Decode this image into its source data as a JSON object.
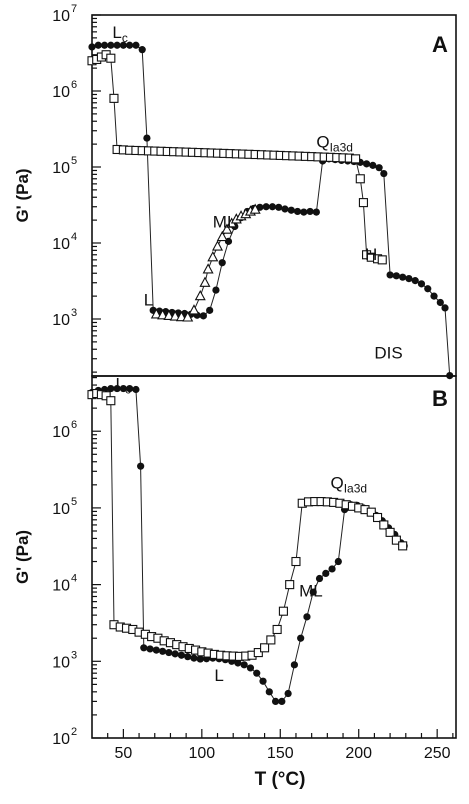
{
  "chart_data": [
    {
      "type": "scatter",
      "panel_label": "A",
      "ylabel": "G' (Pa)",
      "ylog": true,
      "ylim": [
        100,
        10000000
      ],
      "xlim": [
        30,
        262
      ],
      "yticks": [
        {
          "base": "10",
          "exp": "3",
          "value": 1000
        },
        {
          "base": "10",
          "exp": "4",
          "value": 10000
        },
        {
          "base": "10",
          "exp": "5",
          "value": 100000
        },
        {
          "base": "10",
          "exp": "6",
          "value": 1000000
        },
        {
          "base": "10",
          "exp": "7",
          "value": 10000000
        }
      ],
      "annotations": [
        {
          "main": "L",
          "sub": "c",
          "x": 43,
          "y": 5000000
        },
        {
          "main": "Q",
          "sub": "Ia3d",
          "x": 173,
          "y": 180000
        },
        {
          "main": "ML",
          "x": 107,
          "y": 16000
        },
        {
          "main": "L",
          "x": 63,
          "y": 1500
        },
        {
          "main": "H",
          "x": 204,
          "y": 6000
        },
        {
          "main": "DIS",
          "x": 210,
          "y": 300
        }
      ],
      "series": [
        {
          "marker": "filled-circle",
          "points": [
            [
              30,
              3800000
            ],
            [
              34,
              4000000
            ],
            [
              38,
              4000000
            ],
            [
              42,
              4000000
            ],
            [
              46,
              4000000
            ],
            [
              50,
              4000000
            ],
            [
              54,
              4000000
            ],
            [
              58,
              4000000
            ],
            [
              62,
              3500000
            ],
            [
              65,
              240000
            ],
            [
              69,
              1300
            ],
            [
              73,
              1270
            ],
            [
              77,
              1250
            ],
            [
              81,
              1220
            ],
            [
              85,
              1200
            ],
            [
              89,
              1180
            ],
            [
              93,
              1150
            ],
            [
              97,
              1120
            ],
            [
              101,
              1100
            ],
            [
              105,
              1300
            ],
            [
              109,
              2400
            ],
            [
              113,
              5500
            ],
            [
              117,
              10500
            ],
            [
              121,
              16500
            ],
            [
              125,
              21500
            ],
            [
              129,
              26000
            ],
            [
              133,
              28500
            ],
            [
              137,
              29500
            ],
            [
              141,
              30000
            ],
            [
              145,
              30000
            ],
            [
              149,
              29500
            ],
            [
              153,
              28000
            ],
            [
              157,
              27000
            ],
            [
              161,
              26000
            ],
            [
              165,
              25500
            ],
            [
              169,
              26000
            ],
            [
              173,
              25500
            ],
            [
              177,
              120000
            ],
            [
              181,
              128000
            ],
            [
              185,
              125000
            ],
            [
              189,
              122000
            ],
            [
              193,
              120000
            ],
            [
              197,
              118000
            ],
            [
              201,
              115000
            ],
            [
              205,
              110000
            ],
            [
              209,
              105000
            ],
            [
              213,
              98000
            ],
            [
              216,
              82000
            ],
            [
              220,
              3800
            ],
            [
              224,
              3700
            ],
            [
              228,
              3550
            ],
            [
              232,
              3400
            ],
            [
              236,
              3200
            ],
            [
              240,
              2900
            ],
            [
              244,
              2500
            ],
            [
              248,
              2000
            ],
            [
              252,
              1650
            ],
            [
              255,
              1400
            ],
            [
              258,
              180
            ]
          ]
        },
        {
          "marker": "open-square",
          "points": [
            [
              30,
              2500000
            ],
            [
              33,
              2600000
            ],
            [
              36,
              2800000
            ],
            [
              39,
              3000000
            ],
            [
              42,
              2700000
            ],
            [
              44,
              800000
            ],
            [
              46,
              170000
            ],
            [
              50,
              168000
            ],
            [
              54,
              166000
            ],
            [
              58,
              165000
            ],
            [
              62,
              164000
            ],
            [
              66,
              163000
            ],
            [
              70,
              162000
            ],
            [
              74,
              161000
            ],
            [
              78,
              160000
            ],
            [
              82,
              159000
            ],
            [
              86,
              158000
            ],
            [
              90,
              157000
            ],
            [
              94,
              156000
            ],
            [
              98,
              155000
            ],
            [
              102,
              154000
            ],
            [
              106,
              153000
            ],
            [
              110,
              152000
            ],
            [
              114,
              151000
            ],
            [
              118,
              150000
            ],
            [
              122,
              149000
            ],
            [
              126,
              148000
            ],
            [
              130,
              147000
            ],
            [
              134,
              146000
            ],
            [
              138,
              145000
            ],
            [
              142,
              144000
            ],
            [
              146,
              143000
            ],
            [
              150,
              142000
            ],
            [
              154,
              141000
            ],
            [
              158,
              140000
            ],
            [
              162,
              139000
            ],
            [
              166,
              138000
            ],
            [
              170,
              137000
            ],
            [
              174,
              136000
            ],
            [
              178,
              135000
            ],
            [
              182,
              134000
            ],
            [
              186,
              133000
            ],
            [
              190,
              132000
            ],
            [
              194,
              131000
            ],
            [
              198,
              128000
            ],
            [
              201,
              70000
            ],
            [
              203,
              34000
            ],
            [
              205,
              7000
            ],
            [
              208,
              6500
            ],
            [
              212,
              6200
            ],
            [
              215,
              6000
            ]
          ]
        },
        {
          "marker": "open-triangle",
          "points": [
            [
              71,
              1150
            ],
            [
              75,
              1120
            ],
            [
              79,
              1100
            ],
            [
              83,
              1080
            ],
            [
              87,
              1060
            ],
            [
              91,
              1050
            ],
            [
              95,
              1300
            ],
            [
              99,
              2000
            ],
            [
              102,
              3000
            ],
            [
              104,
              4500
            ],
            [
              107,
              6500
            ],
            [
              110,
              9000
            ],
            [
              113,
              12000
            ],
            [
              116,
              15000
            ],
            [
              119,
              18000
            ],
            [
              122,
              20500
            ],
            [
              125,
              22500
            ],
            [
              128,
              24000
            ],
            [
              131,
              26000
            ],
            [
              134,
              27500
            ]
          ]
        }
      ]
    },
    {
      "type": "scatter",
      "panel_label": "B",
      "ylabel": "G' (Pa)",
      "xlabel": "T (°C)",
      "ylog": true,
      "ylim": [
        100,
        6000000
      ],
      "xlim": [
        30,
        262
      ],
      "xticks": [
        50,
        100,
        150,
        200,
        250
      ],
      "yticks": [
        {
          "base": "10",
          "exp": "2",
          "value": 100
        },
        {
          "base": "10",
          "exp": "3",
          "value": 1000
        },
        {
          "base": "10",
          "exp": "4",
          "value": 10000
        },
        {
          "base": "10",
          "exp": "5",
          "value": 100000
        },
        {
          "base": "10",
          "exp": "6",
          "value": 1000000
        }
      ],
      "annotations": [
        {
          "main": "L",
          "sub": "c",
          "x": 45,
          "y": 3500000
        },
        {
          "main": "Q",
          "sub": "Ia3d",
          "x": 182,
          "y": 180000
        },
        {
          "main": "ML",
          "x": 162,
          "y": 7000
        },
        {
          "main": "L",
          "x": 108,
          "y": 550
        }
      ],
      "series": [
        {
          "marker": "filled-circle",
          "points": [
            [
              30,
              3200000
            ],
            [
              34,
              3400000
            ],
            [
              38,
              3500000
            ],
            [
              42,
              3600000
            ],
            [
              46,
              3600000
            ],
            [
              50,
              3600000
            ],
            [
              54,
              3600000
            ],
            [
              58,
              3500000
            ],
            [
              61,
              350000
            ],
            [
              63,
              1500
            ],
            [
              67,
              1450
            ],
            [
              71,
              1400
            ],
            [
              75,
              1350
            ],
            [
              79,
              1300
            ],
            [
              83,
              1250
            ],
            [
              87,
              1200
            ],
            [
              91,
              1150
            ],
            [
              95,
              1100
            ],
            [
              99,
              1070
            ],
            [
              103,
              1080
            ],
            [
              107,
              1100
            ],
            [
              111,
              1080
            ],
            [
              115,
              1050
            ],
            [
              119,
              1000
            ],
            [
              123,
              950
            ],
            [
              127,
              900
            ],
            [
              131,
              820
            ],
            [
              135,
              700
            ],
            [
              139,
              550
            ],
            [
              143,
              400
            ],
            [
              147,
              300
            ],
            [
              151,
              300
            ],
            [
              155,
              380
            ],
            [
              159,
              900
            ],
            [
              163,
              2000
            ],
            [
              167,
              3800
            ],
            [
              171,
              8000
            ],
            [
              175,
              12000
            ],
            [
              179,
              14000
            ],
            [
              183,
              16000
            ],
            [
              187,
              20000
            ],
            [
              191,
              95000
            ],
            [
              195,
              110000
            ],
            [
              199,
              108000
            ],
            [
              203,
              100000
            ],
            [
              207,
              90000
            ],
            [
              211,
              80000
            ],
            [
              215,
              68000
            ],
            [
              219,
              55000
            ],
            [
              223,
              45000
            ],
            [
              227,
              35000
            ],
            [
              229,
              32000
            ]
          ]
        },
        {
          "marker": "open-square",
          "points": [
            [
              30,
              3000000
            ],
            [
              33,
              3100000
            ],
            [
              36,
              3000000
            ],
            [
              39,
              2900000
            ],
            [
              42,
              2500000
            ],
            [
              44,
              3000
            ],
            [
              48,
              2800
            ],
            [
              52,
              2700
            ],
            [
              56,
              2600
            ],
            [
              60,
              2400
            ],
            [
              64,
              2250
            ],
            [
              68,
              2100
            ],
            [
              72,
              2000
            ],
            [
              76,
              1850
            ],
            [
              80,
              1750
            ],
            [
              84,
              1650
            ],
            [
              88,
              1550
            ],
            [
              92,
              1470
            ],
            [
              96,
              1400
            ],
            [
              100,
              1330
            ],
            [
              104,
              1280
            ],
            [
              108,
              1230
            ],
            [
              112,
              1200
            ],
            [
              116,
              1180
            ],
            [
              120,
              1170
            ],
            [
              124,
              1160
            ],
            [
              128,
              1170
            ],
            [
              132,
              1200
            ],
            [
              136,
              1300
            ],
            [
              140,
              1500
            ],
            [
              144,
              1900
            ],
            [
              148,
              2600
            ],
            [
              152,
              4500
            ],
            [
              156,
              10000
            ],
            [
              160,
              20000
            ],
            [
              164,
              115000
            ],
            [
              168,
              120000
            ],
            [
              172,
              121000
            ],
            [
              176,
              121000
            ],
            [
              180,
              120000
            ],
            [
              184,
              118000
            ],
            [
              188,
              115000
            ],
            [
              192,
              110000
            ],
            [
              196,
              105000
            ],
            [
              200,
              100000
            ],
            [
              204,
              95000
            ],
            [
              208,
              88000
            ],
            [
              212,
              75000
            ],
            [
              216,
              60000
            ],
            [
              220,
              48000
            ],
            [
              224,
              38000
            ],
            [
              228,
              32000
            ]
          ]
        }
      ]
    }
  ]
}
